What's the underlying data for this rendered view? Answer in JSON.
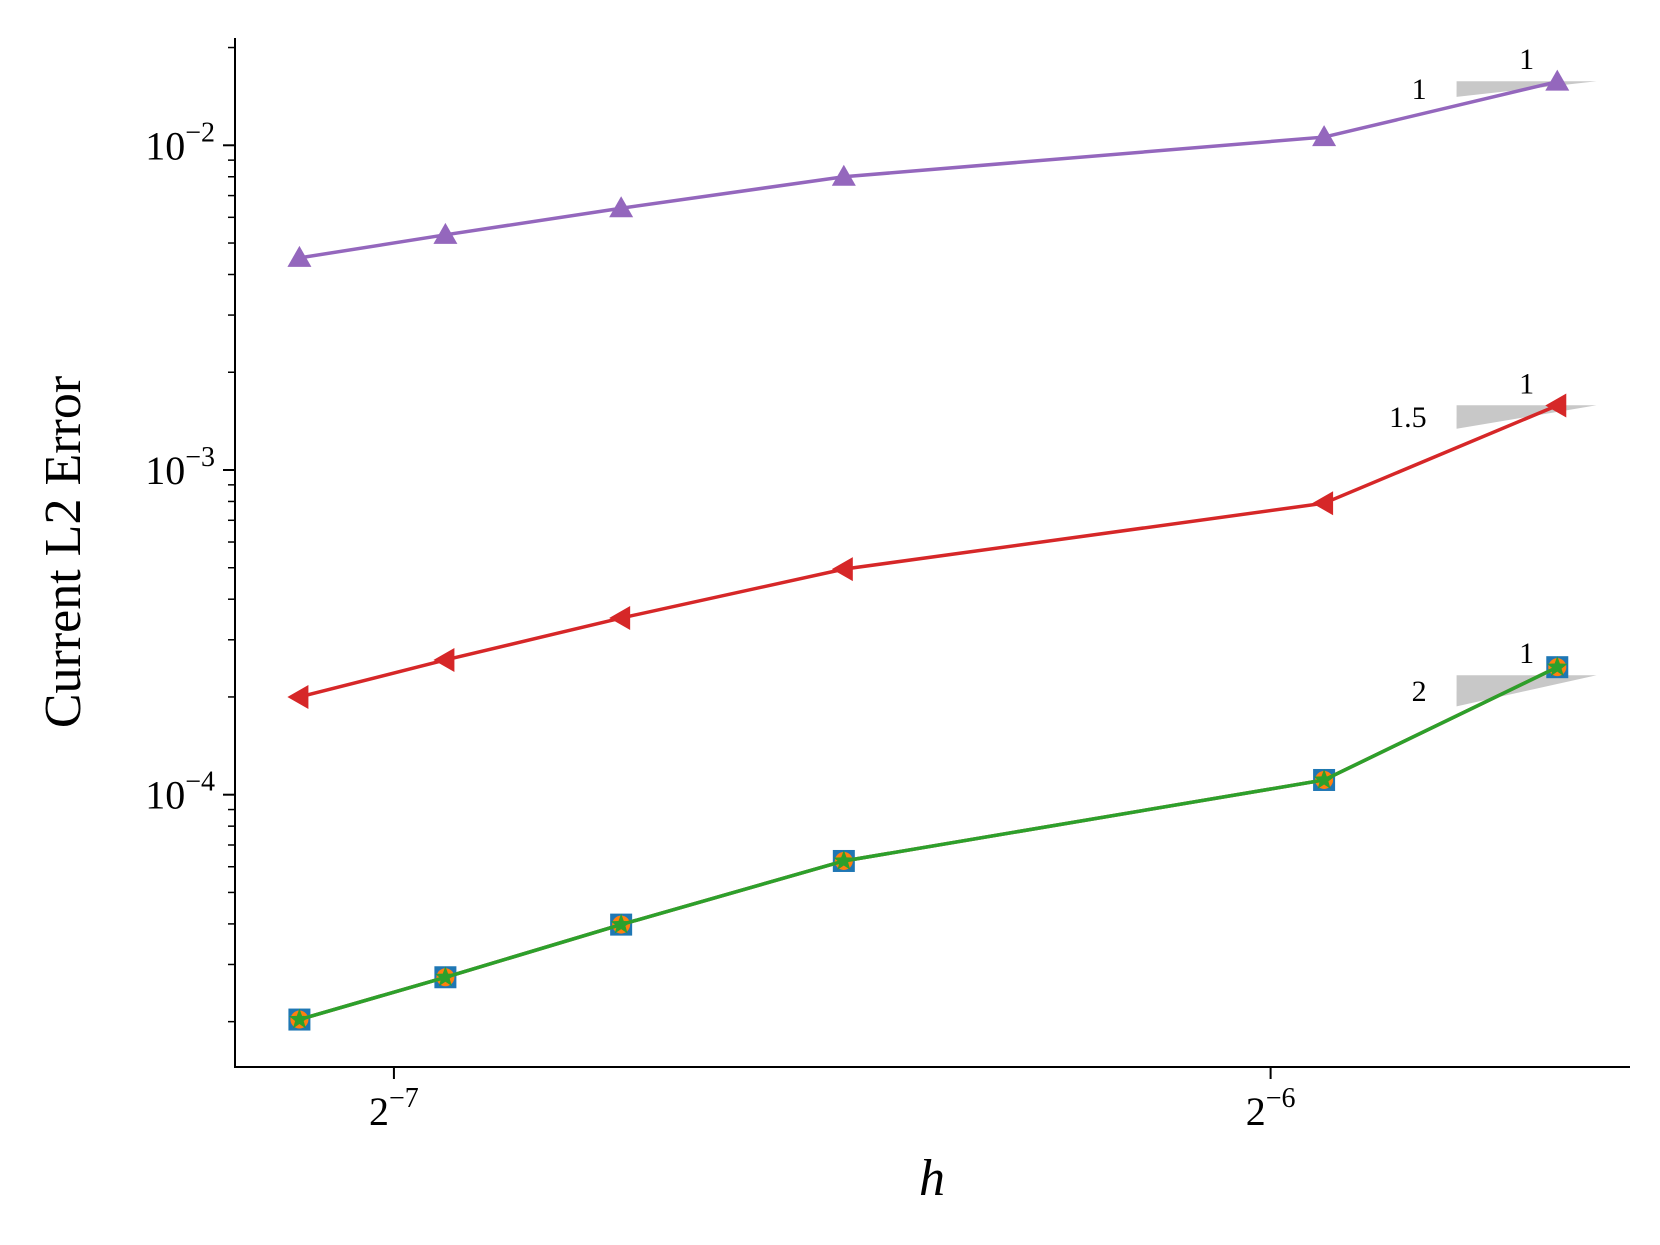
{
  "chart_data": {
    "type": "line",
    "title": "",
    "xlabel": "h",
    "ylabel": "Current L2 Error",
    "xscale": "log2",
    "yscale": "log10",
    "xlim": [
      0.00689,
      0.02076
    ],
    "ylim": [
      1.45e-05,
      0.0214
    ],
    "grid": false,
    "x_ticks": [
      {
        "value": 0.0078125,
        "base": "2",
        "exp": "−7"
      },
      {
        "value": 0.015625,
        "base": "2",
        "exp": "−6"
      }
    ],
    "y_ticks": [
      {
        "value": 0.01,
        "base": "10",
        "exp": "−2"
      },
      {
        "value": 0.001,
        "base": "10",
        "exp": "−3"
      },
      {
        "value": 0.0001,
        "base": "10",
        "exp": "−4"
      }
    ],
    "x": [
      0.00725,
      0.008137,
      0.00935,
      0.01115,
      0.0163,
      0.0196
    ],
    "series": [
      {
        "color": "#9467bd",
        "marker": "triangle-up",
        "values": [
          0.0045,
          0.0053,
          0.0064,
          0.008,
          0.0106,
          0.0157
        ]
      },
      {
        "color": "#d62728",
        "marker": "triangle-left",
        "values": [
          0.0002,
          0.00026,
          0.00035,
          0.000495,
          0.00079,
          0.00158
        ]
      },
      {
        "color": "#1f77b4",
        "marker": "square",
        "values": [
          2.03e-05,
          2.74e-05,
          3.98e-05,
          6.25e-05,
          0.000111,
          0.000247
        ]
      },
      {
        "color": "#ff7f0e",
        "marker": "circle",
        "values": [
          2.03e-05,
          2.74e-05,
          3.98e-05,
          6.25e-05,
          0.000111,
          0.000247
        ]
      },
      {
        "color": "#2ca02c",
        "marker": "star",
        "values": [
          2.03e-05,
          2.74e-05,
          3.98e-05,
          6.25e-05,
          0.000111,
          0.000247
        ]
      }
    ],
    "slope_triangles": [
      {
        "slope": 1,
        "run_label": "1",
        "rise_label": "1",
        "x0": 0.0181,
        "y0": 0.0141
      },
      {
        "slope": 1.5,
        "run_label": "1",
        "rise_label": "1.5",
        "x0": 0.0181,
        "y0": 0.00134
      },
      {
        "slope": 2,
        "run_label": "1",
        "rise_label": "2",
        "x0": 0.0181,
        "y0": 0.000187
      }
    ],
    "triangle_color": "#c8c8c8"
  }
}
